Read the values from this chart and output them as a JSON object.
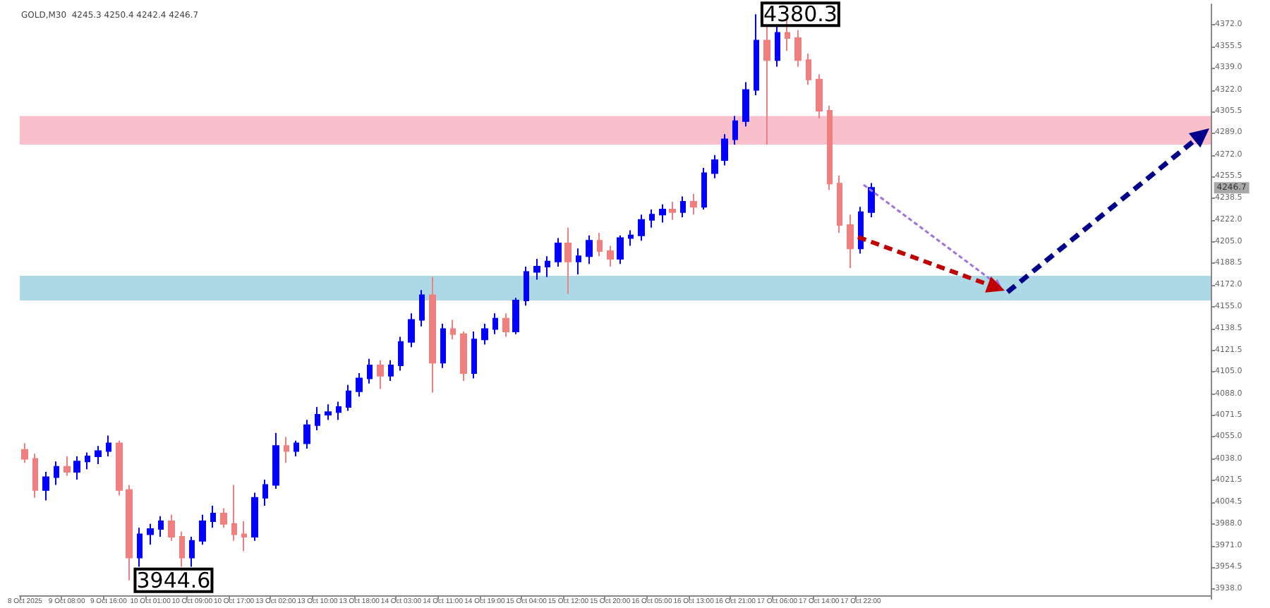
{
  "chart_data": {
    "type": "candlestick",
    "title": "GOLD,M30  4245.3 4250.4 4242.4 4246.7",
    "categories": [
      "8 Oct 2025",
      null,
      null,
      null,
      "9 Oct 08:00",
      null,
      null,
      null,
      "9 Oct 16:00",
      null,
      null,
      null,
      "10 Oct 01:00",
      null,
      null,
      null,
      "10 Oct 09:00",
      null,
      null,
      null,
      "10 Oct 17:00",
      null,
      null,
      null,
      "13 Oct 02:00",
      null,
      null,
      null,
      "13 Oct 10:00",
      null,
      null,
      null,
      "13 Oct 18:00",
      null,
      null,
      null,
      "14 Oct 03:00",
      null,
      null,
      null,
      "14 Oct 11:00",
      null,
      null,
      null,
      "14 Oct 19:00",
      null,
      null,
      null,
      "15 Oct 04:00",
      null,
      null,
      null,
      "15 Oct 12:00",
      null,
      null,
      null,
      "15 Oct 20:00",
      null,
      null,
      null,
      "16 Oct 05:00",
      null,
      null,
      null,
      "16 Oct 13:00",
      null,
      null,
      null,
      "16 Oct 21:00",
      null,
      null,
      null,
      "17 Oct 06:00",
      null,
      null,
      null,
      "17 Oct 14:00",
      null,
      null,
      null,
      "17 Oct 22:00",
      null,
      null,
      null,
      null,
      null,
      null,
      null,
      null,
      null,
      null,
      null,
      null,
      null,
      null,
      null,
      null,
      null,
      null,
      null,
      null,
      null,
      null,
      null,
      null,
      null,
      null,
      null,
      null,
      null,
      null,
      null,
      null,
      null
    ],
    "ohlc": [
      [
        4045,
        4050,
        4035,
        4038
      ],
      [
        4038,
        4042,
        4008,
        4014
      ],
      [
        4014,
        4028,
        4006,
        4024
      ],
      [
        4024,
        4036,
        4018,
        4032
      ],
      [
        4032,
        4040,
        4025,
        4028
      ],
      [
        4028,
        4040,
        4022,
        4036
      ],
      [
        4036,
        4043,
        4030,
        4040
      ],
      [
        4040,
        4048,
        4034,
        4044
      ],
      [
        4044,
        4056,
        4040,
        4050
      ],
      [
        4050,
        4052,
        4010,
        4014
      ],
      [
        4014,
        4018,
        3944.6,
        3962
      ],
      [
        3962,
        3985,
        3955,
        3980
      ],
      [
        3980,
        3988,
        3972,
        3984
      ],
      [
        3984,
        3994,
        3978,
        3990
      ],
      [
        3990,
        3995,
        3975,
        3978
      ],
      [
        3978,
        3982,
        3955,
        3962
      ],
      [
        3962,
        3978,
        3955,
        3975
      ],
      [
        3975,
        3995,
        3972,
        3990
      ],
      [
        3990,
        4002,
        3985,
        3996
      ],
      [
        3996,
        4000,
        3985,
        3988
      ],
      [
        3988,
        4018,
        3975,
        3980
      ],
      [
        3980,
        3990,
        3967,
        3978
      ],
      [
        3978,
        4012,
        3975,
        4008
      ],
      [
        4008,
        4022,
        4002,
        4018
      ],
      [
        4018,
        4058,
        4015,
        4048
      ],
      [
        4048,
        4055,
        4035,
        4044
      ],
      [
        4044,
        4052,
        4040,
        4050
      ],
      [
        4050,
        4068,
        4046,
        4064
      ],
      [
        4064,
        4078,
        4060,
        4072
      ],
      [
        4072,
        4080,
        4068,
        4074
      ],
      [
        4074,
        4082,
        4068,
        4078
      ],
      [
        4078,
        4095,
        4075,
        4090
      ],
      [
        4090,
        4104,
        4086,
        4100
      ],
      [
        4100,
        4115,
        4096,
        4110
      ],
      [
        4110,
        4114,
        4092,
        4102
      ],
      [
        4102,
        4114,
        4098,
        4110
      ],
      [
        4110,
        4132,
        4106,
        4128
      ],
      [
        4128,
        4150,
        4124,
        4145
      ],
      [
        4145,
        4168,
        4140,
        4164
      ],
      [
        4164,
        4178,
        4089,
        4112
      ],
      [
        4112,
        4142,
        4108,
        4138
      ],
      [
        4138,
        4145,
        4130,
        4134
      ],
      [
        4134,
        4136,
        4098,
        4104
      ],
      [
        4104,
        4136,
        4100,
        4130
      ],
      [
        4130,
        4142,
        4126,
        4138
      ],
      [
        4138,
        4150,
        4134,
        4146
      ],
      [
        4146,
        4150,
        4132,
        4136
      ],
      [
        4136,
        4162,
        4134,
        4160
      ],
      [
        4160,
        4186,
        4156,
        4182
      ],
      [
        4182,
        4192,
        4176,
        4186
      ],
      [
        4186,
        4194,
        4178,
        4190
      ],
      [
        4190,
        4208,
        4186,
        4204
      ],
      [
        4204,
        4216,
        4165,
        4190
      ],
      [
        4190,
        4200,
        4180,
        4194
      ],
      [
        4194,
        4210,
        4188,
        4206
      ],
      [
        4206,
        4212,
        4194,
        4198
      ],
      [
        4198,
        4202,
        4186,
        4192
      ],
      [
        4192,
        4210,
        4188,
        4208
      ],
      [
        4208,
        4214,
        4202,
        4210
      ],
      [
        4210,
        4226,
        4206,
        4222
      ],
      [
        4222,
        4230,
        4216,
        4226
      ],
      [
        4226,
        4234,
        4220,
        4230
      ],
      [
        4230,
        4236,
        4222,
        4228
      ],
      [
        4228,
        4240,
        4224,
        4236
      ],
      [
        4236,
        4242,
        4226,
        4232
      ],
      [
        4232,
        4262,
        4230,
        4258
      ],
      [
        4258,
        4272,
        4254,
        4268
      ],
      [
        4268,
        4288,
        4264,
        4284
      ],
      [
        4284,
        4302,
        4280,
        4298
      ],
      [
        4298,
        4328,
        4294,
        4322
      ],
      [
        4322,
        4380.3,
        4318,
        4360
      ],
      [
        4360,
        4372,
        4280,
        4345
      ],
      [
        4345,
        4372,
        4340,
        4366
      ],
      [
        4366,
        4376,
        4352,
        4362
      ],
      [
        4362,
        4368,
        4340,
        4345
      ],
      [
        4345,
        4350,
        4326,
        4330
      ],
      [
        4330,
        4334,
        4300,
        4306
      ],
      [
        4306,
        4310,
        4245,
        4250
      ],
      [
        4250,
        4256,
        4212,
        4218
      ],
      [
        4218,
        4226,
        4185,
        4200
      ],
      [
        4200,
        4232,
        4196,
        4228
      ],
      [
        4228,
        4250.4,
        4224,
        4246.7
      ],
      null,
      null,
      null,
      null,
      null,
      null,
      null,
      null,
      null,
      null,
      null,
      null,
      null,
      null,
      null,
      null,
      null,
      null,
      null,
      null,
      null,
      null,
      null,
      null,
      null,
      null,
      null,
      null,
      null,
      null,
      null,
      null
    ],
    "colors": [
      "#f08080",
      "#f08080",
      "#0000ff",
      "#0000ff",
      "#f08080",
      "#0000ff",
      "#0000ff",
      "#0000ff",
      "#0000ff",
      "#f08080",
      "#f08080",
      "#0000ff",
      "#0000ff",
      "#0000ff",
      "#f08080",
      "#f08080",
      "#0000ff",
      "#0000ff",
      "#0000ff",
      "#f08080",
      "#f08080",
      "#f08080",
      "#0000ff",
      "#0000ff",
      "#0000ff",
      "#f08080",
      "#0000ff",
      "#0000ff",
      "#0000ff",
      "#0000ff",
      "#0000ff",
      "#0000ff",
      "#0000ff",
      "#0000ff",
      "#f08080",
      "#0000ff",
      "#0000ff",
      "#0000ff",
      "#0000ff",
      "#f08080",
      "#0000ff",
      "#f08080",
      "#f08080",
      "#0000ff",
      "#0000ff",
      "#0000ff",
      "#f08080",
      "#0000ff",
      "#0000ff",
      "#0000ff",
      "#0000ff",
      "#0000ff",
      "#f08080",
      "#0000ff",
      "#0000ff",
      "#f08080",
      "#f08080",
      "#0000ff",
      "#0000ff",
      "#0000ff",
      "#0000ff",
      "#0000ff",
      "#f08080",
      "#0000ff",
      "#f08080",
      "#0000ff",
      "#0000ff",
      "#0000ff",
      "#0000ff",
      "#0000ff",
      "#0000ff",
      "#f08080",
      "#0000ff",
      "#f08080",
      "#f08080",
      "#f08080",
      "#f08080",
      "#f08080",
      "#f08080",
      "#f08080",
      "#0000ff",
      "#0000ff",
      null,
      null,
      null,
      null,
      null,
      null,
      null,
      null,
      null,
      null,
      null,
      null,
      null,
      null,
      null,
      null,
      null,
      null,
      null,
      null,
      null,
      null,
      null,
      null,
      null,
      null,
      null,
      null,
      null,
      null,
      null,
      null
    ],
    "ylim": [
      3933,
      4388
    ],
    "yticks": [
      {
        "value": 3938,
        "label": "3938.0"
      },
      {
        "value": 3954.5,
        "label": "3954.5"
      },
      {
        "value": 3971,
        "label": "3971.0"
      },
      {
        "value": 3988,
        "label": "3988.0"
      },
      {
        "value": 4004.5,
        "label": "4004.5"
      },
      {
        "value": 4021.5,
        "label": "4021.5"
      },
      {
        "value": 4038,
        "label": "4038.0"
      },
      {
        "value": 4055,
        "label": "4055.0"
      },
      {
        "value": 4071.5,
        "label": "4071.5"
      },
      {
        "value": 4088,
        "label": "4088.0"
      },
      {
        "value": 4105,
        "label": "4105.0"
      },
      {
        "value": 4121.5,
        "label": "4121.5"
      },
      {
        "value": 4138.5,
        "label": "4138.5"
      },
      {
        "value": 4155,
        "label": "4155.0"
      },
      {
        "value": 4172,
        "label": "4172.0"
      },
      {
        "value": 4188.5,
        "label": "4188.5"
      },
      {
        "value": 4205,
        "label": "4205.0"
      },
      {
        "value": 4222,
        "label": "4222.0"
      },
      {
        "value": 4238.5,
        "label": "4238.5"
      },
      {
        "value": 4255.5,
        "label": "4255.5"
      },
      {
        "value": 4272,
        "label": "4272.0"
      },
      {
        "value": 4289,
        "label": "4289.0"
      },
      {
        "value": 4305.5,
        "label": "4305.5"
      },
      {
        "value": 4322,
        "label": "4322.0"
      },
      {
        "value": 4339,
        "label": "4339.0"
      },
      {
        "value": 4355.5,
        "label": "4355.5"
      },
      {
        "value": 4372,
        "label": "4372.0"
      }
    ],
    "bands": [
      {
        "axis": "y",
        "from": 4280,
        "to": 4302,
        "color": "#f9c0cc"
      },
      {
        "axis": "y",
        "from": 4160,
        "to": 4179,
        "color": "#add8e6"
      }
    ],
    "annotations": [
      "4380.3",
      "3944.6",
      "4246.7"
    ],
    "grid": false
  }
}
